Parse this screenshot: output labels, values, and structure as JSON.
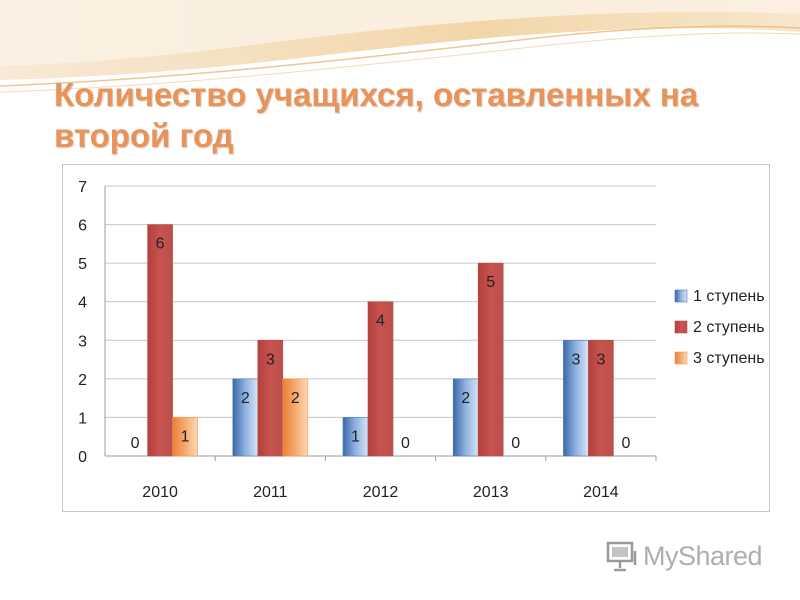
{
  "slide": {
    "title": "Количество учащихся, оставленных на второй год"
  },
  "watermark": {
    "text": "MyShared",
    "icon": "presentation-board-icon"
  },
  "colors": {
    "title": "#e8935a",
    "series_1": "#4a7ebb",
    "series_2": "#be4b48",
    "series_3": "#f79646",
    "grid": "#c6c6c6",
    "watermark": "#aeaeae"
  },
  "chart_data": {
    "type": "bar",
    "categories": [
      "2010",
      "2011",
      "2012",
      "2013",
      "2014"
    ],
    "series": [
      {
        "name": "1 ступень",
        "values": [
          0,
          2,
          1,
          2,
          3
        ],
        "data_labels": [
          "0",
          "2",
          "1",
          "2",
          "3"
        ]
      },
      {
        "name": "2 ступень",
        "values": [
          6,
          3,
          4,
          5,
          3
        ],
        "data_labels": [
          "6",
          "3",
          "4",
          "5",
          "3"
        ]
      },
      {
        "name": "3 ступень",
        "values": [
          1,
          2,
          0,
          0,
          0
        ],
        "data_labels": [
          "1",
          "2",
          "0",
          "0",
          "0"
        ]
      }
    ],
    "ylim": [
      0,
      7
    ],
    "yticks": [
      "0",
      "1",
      "2",
      "3",
      "4",
      "5",
      "6",
      "7"
    ],
    "grid": true,
    "legend_position": "right"
  }
}
